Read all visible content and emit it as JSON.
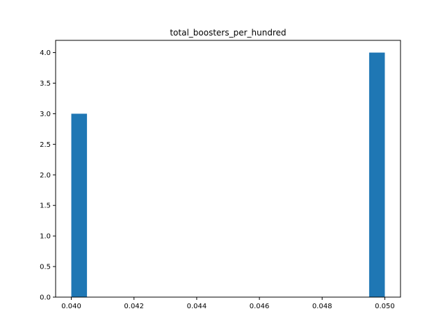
{
  "chart_data": {
    "type": "bar",
    "title": "total_boosters_per_hundred",
    "xlabel": "",
    "ylabel": "",
    "xlim": [
      0.0395,
      0.0505
    ],
    "ylim": [
      0,
      4.2
    ],
    "xticks": [
      "0.040",
      "0.042",
      "0.044",
      "0.046",
      "0.048",
      "0.050"
    ],
    "xtick_values": [
      0.04,
      0.042,
      0.044,
      0.046,
      0.048,
      0.05
    ],
    "yticks": [
      "0.0",
      "0.5",
      "1.0",
      "1.5",
      "2.0",
      "2.5",
      "3.0",
      "3.5",
      "4.0"
    ],
    "ytick_values": [
      0,
      0.5,
      1.0,
      1.5,
      2.0,
      2.5,
      3.0,
      3.5,
      4.0
    ],
    "bars": [
      {
        "x_start": 0.04,
        "x_end": 0.0405,
        "value": 3
      },
      {
        "x_start": 0.0495,
        "x_end": 0.05,
        "value": 4
      }
    ],
    "bar_color": "#1f77b4",
    "grid": false,
    "legend": "none"
  }
}
